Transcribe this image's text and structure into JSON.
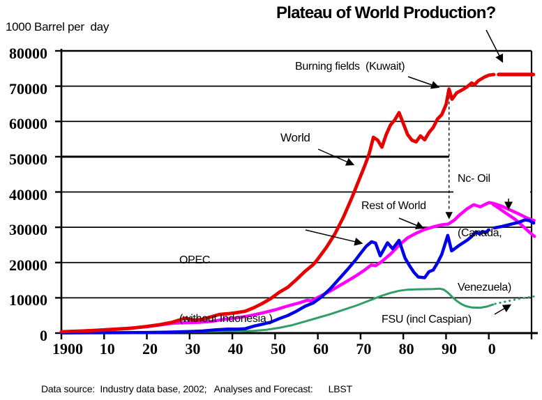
{
  "title": "Plateau of World Production?",
  "y_axis_unit": "1000 Barrel per  day",
  "footer": "Data source:  Industry data base, 2002;   Analyses and Forecast:      LBST",
  "colors": {
    "world": "#e60000",
    "opec": "#0000e6",
    "rest_of_world": "#ff00ff",
    "fsu": "#2f9e68",
    "axis": "#000000"
  },
  "annotations": {
    "burning_fields": "Burning fields  (Kuwait)",
    "world": "World",
    "opec_line1": "OPEC",
    "opec_line2": "(without Indonesia )",
    "rest_of_world": "Rest of World",
    "nc_oil_line1": "Nc- Oil",
    "nc_oil_line2": "(Canada,",
    "nc_oil_line3": "Venezuela)",
    "fsu": "FSU (incl Caspian)"
  },
  "chart_data": {
    "type": "line",
    "title": "Plateau of World Production?",
    "xlabel": "year",
    "ylabel": "1000 Barrel per day",
    "xlim": [
      1900,
      2011
    ],
    "ylim": [
      0,
      80000
    ],
    "grid": "horizontal",
    "legend_position": "inline-annotations",
    "x_ticks": [
      {
        "year": 1900,
        "label": "1900"
      },
      {
        "year": 1910,
        "label": "10"
      },
      {
        "year": 1920,
        "label": "20"
      },
      {
        "year": 1930,
        "label": "30"
      },
      {
        "year": 1940,
        "label": "40"
      },
      {
        "year": 1950,
        "label": "50"
      },
      {
        "year": 1960,
        "label": "60"
      },
      {
        "year": 1970,
        "label": "70"
      },
      {
        "year": 1980,
        "label": "80"
      },
      {
        "year": 1990,
        "label": "90"
      },
      {
        "year": 2000,
        "label": "0"
      },
      {
        "year": 2010,
        "label": ""
      }
    ],
    "y_ticks": [
      {
        "value": 0,
        "label": "0"
      },
      {
        "value": 10000,
        "label": "10000"
      },
      {
        "value": 20000,
        "label": "20000"
      },
      {
        "value": 30000,
        "label": "30000"
      },
      {
        "value": 40000,
        "label": "40000"
      },
      {
        "value": 50000,
        "label": "50000"
      },
      {
        "value": 60000,
        "label": "60000"
      },
      {
        "value": 70000,
        "label": "70000"
      },
      {
        "value": 80000,
        "label": "80000"
      }
    ],
    "event_line": {
      "year": 1990.7,
      "from": 69200,
      "to": 31500,
      "label": "Burning fields (Kuwait)"
    },
    "series": [
      {
        "name": "FSU (incl Caspian)",
        "color": "#2f9e68",
        "style": "solid",
        "width": 3,
        "points": [
          [
            1927,
            150
          ],
          [
            1931,
            300
          ],
          [
            1935,
            450
          ],
          [
            1939,
            600
          ],
          [
            1942,
            520
          ],
          [
            1945,
            650
          ],
          [
            1948,
            950
          ],
          [
            1951,
            1500
          ],
          [
            1954,
            2250
          ],
          [
            1957,
            3300
          ],
          [
            1960,
            4350
          ],
          [
            1963,
            5400
          ],
          [
            1966,
            6600
          ],
          [
            1969,
            7800
          ],
          [
            1972,
            9200
          ],
          [
            1975,
            10600
          ],
          [
            1977,
            11400
          ],
          [
            1979,
            12000
          ],
          [
            1981,
            12300
          ],
          [
            1983,
            12400
          ],
          [
            1985,
            12450
          ],
          [
            1987,
            12500
          ],
          [
            1988.5,
            12600
          ],
          [
            1989.5,
            12300
          ],
          [
            1990.5,
            11400
          ],
          [
            1991.5,
            10200
          ],
          [
            1992.5,
            9100
          ],
          [
            1993.5,
            8300
          ],
          [
            1994.5,
            7700
          ],
          [
            1996,
            7250
          ],
          [
            1998,
            7200
          ],
          [
            1999.5,
            7500
          ],
          [
            2001,
            8100
          ]
        ]
      },
      {
        "name": "FSU forecast",
        "color": "#2f9e68",
        "style": "dotted",
        "width": 3,
        "points": [
          [
            2001.5,
            8300
          ],
          [
            2003,
            8700
          ],
          [
            2005,
            9200
          ],
          [
            2007,
            9700
          ],
          [
            2009,
            10100
          ],
          [
            2010.5,
            10400
          ]
        ]
      },
      {
        "name": "Rest of World",
        "color": "#ff00ff",
        "style": "solid",
        "width": 4.5,
        "points": [
          [
            1900,
            380
          ],
          [
            1904,
            560
          ],
          [
            1908,
            800
          ],
          [
            1912,
            1100
          ],
          [
            1916,
            1400
          ],
          [
            1920,
            1800
          ],
          [
            1923,
            2300
          ],
          [
            1926,
            2800
          ],
          [
            1929,
            2950
          ],
          [
            1932,
            3050
          ],
          [
            1935,
            3300
          ],
          [
            1938,
            3900
          ],
          [
            1941,
            4300
          ],
          [
            1944,
            4900
          ],
          [
            1947,
            5700
          ],
          [
            1950,
            6600
          ],
          [
            1953,
            7700
          ],
          [
            1956,
            8700
          ],
          [
            1957.5,
            9300
          ],
          [
            1958.5,
            9100
          ],
          [
            1960,
            10100
          ],
          [
            1963,
            12000
          ],
          [
            1966,
            14100
          ],
          [
            1969,
            16300
          ],
          [
            1971,
            17900
          ],
          [
            1972.5,
            19300
          ],
          [
            1973.5,
            19100
          ],
          [
            1975,
            20300
          ],
          [
            1977,
            22400
          ],
          [
            1979,
            24900
          ],
          [
            1981,
            27000
          ],
          [
            1983,
            28300
          ],
          [
            1985,
            29400
          ],
          [
            1987,
            30100
          ],
          [
            1989,
            30700
          ],
          [
            1990.5,
            30900
          ],
          [
            1992,
            32100
          ],
          [
            1993,
            33300
          ],
          [
            1995,
            35300
          ],
          [
            1996.5,
            36400
          ],
          [
            1998,
            35800
          ],
          [
            2000,
            37000
          ],
          [
            2001,
            36800
          ]
        ]
      },
      {
        "name": "Rest of World incl Nc-Oil forecast",
        "color": "#ff00ff",
        "style": "solid",
        "width": 4.5,
        "points": [
          [
            2001,
            36800
          ],
          [
            2003,
            36000
          ],
          [
            2005,
            34900
          ],
          [
            2007,
            33800
          ],
          [
            2009,
            32600
          ],
          [
            2010.6,
            31900
          ]
        ]
      },
      {
        "name": "Rest of World conventional forecast",
        "color": "#ff00ff",
        "style": "solid",
        "width": 4.5,
        "points": [
          [
            2001,
            36500
          ],
          [
            2002.5,
            35300
          ],
          [
            2004,
            34000
          ],
          [
            2006,
            32400
          ],
          [
            2008,
            30300
          ],
          [
            2009.5,
            28600
          ],
          [
            2010.7,
            27400
          ]
        ]
      },
      {
        "name": "OPEC (without Indonesia)",
        "color": "#0000e6",
        "style": "solid",
        "width": 4.5,
        "points": [
          [
            1900,
            60
          ],
          [
            1908,
            90
          ],
          [
            1914,
            120
          ],
          [
            1920,
            180
          ],
          [
            1925,
            280
          ],
          [
            1930,
            430
          ],
          [
            1933,
            600
          ],
          [
            1936,
            900
          ],
          [
            1939,
            1150
          ],
          [
            1941,
            1100
          ],
          [
            1943,
            1250
          ],
          [
            1945,
            1950
          ],
          [
            1947,
            2500
          ],
          [
            1949,
            3100
          ],
          [
            1951,
            4100
          ],
          [
            1953,
            5000
          ],
          [
            1955,
            6200
          ],
          [
            1957,
            7600
          ],
          [
            1959,
            8600
          ],
          [
            1961,
            10400
          ],
          [
            1963,
            12700
          ],
          [
            1965,
            15400
          ],
          [
            1967,
            18100
          ],
          [
            1969,
            21000
          ],
          [
            1970,
            22600
          ],
          [
            1971.3,
            24600
          ],
          [
            1972.6,
            25900
          ],
          [
            1973.5,
            25500
          ],
          [
            1974.6,
            21900
          ],
          [
            1976.3,
            25600
          ],
          [
            1977.5,
            23900
          ],
          [
            1979,
            26300
          ],
          [
            1980.4,
            21300
          ],
          [
            1981.5,
            19000
          ],
          [
            1982.5,
            17200
          ],
          [
            1983.5,
            15900
          ],
          [
            1985,
            15700
          ],
          [
            1986,
            17400
          ],
          [
            1987,
            17900
          ],
          [
            1988,
            19900
          ],
          [
            1989,
            22300
          ],
          [
            1990.4,
            27700
          ],
          [
            1991.3,
            23300
          ],
          [
            1992,
            23900
          ],
          [
            1993,
            24800
          ],
          [
            1994,
            25600
          ],
          [
            1995,
            26400
          ],
          [
            1996,
            27400
          ],
          [
            1997,
            28700
          ],
          [
            1997.8,
            28100
          ],
          [
            1998.5,
            28800
          ],
          [
            1999.2,
            28400
          ],
          [
            2000,
            29300
          ]
        ]
      },
      {
        "name": "OPEC forecast",
        "color": "#0000e6",
        "style": "solid",
        "width": 4.5,
        "points": [
          [
            2001.3,
            29800
          ],
          [
            2003,
            30200
          ],
          [
            2005,
            30800
          ],
          [
            2007,
            31400
          ],
          [
            2008.5,
            32100
          ],
          [
            2009.5,
            31900
          ],
          [
            2010.5,
            31200
          ]
        ]
      },
      {
        "name": "World",
        "color": "#e60000",
        "style": "solid",
        "width": 4.8,
        "points": [
          [
            1900,
            400
          ],
          [
            1904,
            550
          ],
          [
            1908,
            750
          ],
          [
            1912,
            1050
          ],
          [
            1916,
            1350
          ],
          [
            1920,
            1900
          ],
          [
            1923,
            2400
          ],
          [
            1926,
            3100
          ],
          [
            1929,
            4250
          ],
          [
            1931,
            3700
          ],
          [
            1933,
            3900
          ],
          [
            1935,
            4600
          ],
          [
            1937,
            5300
          ],
          [
            1939,
            5500
          ],
          [
            1941,
            5800
          ],
          [
            1943,
            6200
          ],
          [
            1945,
            7200
          ],
          [
            1947,
            8400
          ],
          [
            1949,
            9800
          ],
          [
            1951,
            11600
          ],
          [
            1953,
            13000
          ],
          [
            1955,
            15200
          ],
          [
            1957,
            17500
          ],
          [
            1959,
            19500
          ],
          [
            1960,
            21000
          ],
          [
            1962,
            24300
          ],
          [
            1964,
            28100
          ],
          [
            1966,
            32900
          ],
          [
            1968,
            38500
          ],
          [
            1970,
            44500
          ],
          [
            1971,
            47500
          ],
          [
            1972,
            50800
          ],
          [
            1973,
            55500
          ],
          [
            1974,
            54700
          ],
          [
            1975,
            52700
          ],
          [
            1976,
            56300
          ],
          [
            1977,
            59000
          ],
          [
            1978,
            60400
          ],
          [
            1979,
            62500
          ],
          [
            1980,
            59400
          ],
          [
            1981,
            56300
          ],
          [
            1982,
            54700
          ],
          [
            1983,
            54200
          ],
          [
            1984,
            55900
          ],
          [
            1985,
            54800
          ],
          [
            1986,
            56800
          ],
          [
            1987,
            58300
          ],
          [
            1988,
            60700
          ],
          [
            1989,
            61900
          ],
          [
            1990,
            64800
          ],
          [
            1990.7,
            69200
          ],
          [
            1991.4,
            66300
          ],
          [
            1992.5,
            68100
          ],
          [
            1994,
            69100
          ],
          [
            1995,
            69900
          ],
          [
            1996,
            70900
          ],
          [
            1996.7,
            70400
          ],
          [
            1997.5,
            71500
          ],
          [
            1999,
            72600
          ],
          [
            2000,
            73100
          ],
          [
            2001.2,
            73300
          ]
        ]
      },
      {
        "name": "World forecast plateau",
        "color": "#e60000",
        "style": "solid",
        "width": 5.2,
        "points": [
          [
            2002.3,
            73300
          ],
          [
            2010.4,
            73300
          ]
        ]
      }
    ]
  }
}
